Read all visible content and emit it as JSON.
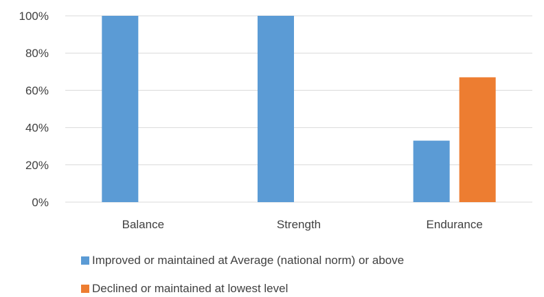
{
  "chart_data": {
    "type": "bar",
    "categories": [
      "Balance",
      "Strength",
      "Endurance"
    ],
    "series": [
      {
        "name": "Improved or maintained at Average (national norm) or above",
        "values": [
          100,
          100,
          33
        ],
        "color": "#5B9BD5"
      },
      {
        "name": "Declined or maintained at lowest level",
        "values": [
          0,
          0,
          67
        ],
        "color": "#ED7D31"
      }
    ],
    "ylim": [
      0,
      100
    ],
    "yticks": [
      "0%",
      "20%",
      "40%",
      "60%",
      "80%",
      "100%"
    ],
    "grid": true,
    "legend_position": "bottom"
  }
}
